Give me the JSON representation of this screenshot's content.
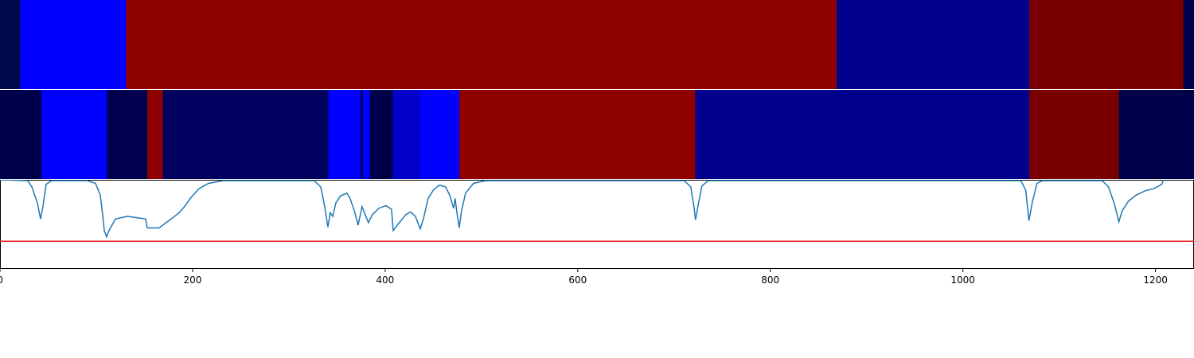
{
  "chart_data": [
    {
      "type": "segments",
      "xlim": [
        0,
        1240
      ],
      "bins": [
        0,
        21,
        131,
        869,
        1069,
        1229,
        1240
      ],
      "colors": [
        "#000a4a",
        "#0000ff",
        "#8f0000",
        "#00008a",
        "#7a0000",
        "#000050"
      ]
    },
    {
      "type": "segments",
      "xlim": [
        0,
        1240
      ],
      "bins": [
        0,
        43,
        111,
        153,
        169,
        341,
        374,
        377,
        384,
        408,
        436,
        477,
        722,
        1069,
        1162,
        1240
      ],
      "colors": [
        "#00004a",
        "#0000ff",
        "#00004f",
        "#8f0000",
        "#00005e",
        "#0000ff",
        "#00006f",
        "#0000ff",
        "#00004a",
        "#0000c8",
        "#0000ff",
        "#8f0000",
        "#00008a",
        "#7a0000",
        "#00004a"
      ]
    },
    {
      "type": "line",
      "xlim": [
        0,
        1240
      ],
      "ylim": [
        0,
        1
      ],
      "xticks": [
        0,
        200,
        400,
        600,
        800,
        1000,
        1200
      ],
      "color": "#1f77b4",
      "hline": 0.31,
      "hline_color": "#e41a1c",
      "x": [
        0,
        28.9,
        33.1,
        38.8,
        42.1,
        44.6,
        47.9,
        53.7,
        90.9,
        99.2,
        104.1,
        106.6,
        108.3,
        110.7,
        113.2,
        119.8,
        132.2,
        151.2,
        152.9,
        165.3,
        170.2,
        175.2,
        180.2,
        186,
        191.7,
        198.3,
        206.6,
        216.5,
        231.4,
        326.4,
        333.1,
        337.2,
        340.5,
        343,
        345.5,
        348.8,
        353.7,
        360.3,
        363.6,
        368.6,
        371.9,
        376,
        378.5,
        382.6,
        386.8,
        393.4,
        400.8,
        406.6,
        408.3,
        413.2,
        421.5,
        426.4,
        431.4,
        436.4,
        439.7,
        444.6,
        450.4,
        456.2,
        462.8,
        466.9,
        471.1,
        472.7,
        474.4,
        476.9,
        479.3,
        483.5,
        491.7,
        504.1,
        710.7,
        717.4,
        720.7,
        722.3,
        724.8,
        728.9,
        735.5,
        1060.3,
        1065.3,
        1068.6,
        1071.9,
        1076.9,
        1082.6,
        1144.6,
        1151.2,
        1157,
        1162,
        1165.3,
        1171.9,
        1180.2,
        1190.1,
        1198.3,
        1206.6,
        1208.3,
        1214.9
      ],
      "values": [
        1.0,
        0.99,
        0.92,
        0.74,
        0.56,
        0.7,
        0.95,
        0.99,
        0.99,
        0.96,
        0.83,
        0.61,
        0.43,
        0.36,
        0.43,
        0.56,
        0.59,
        0.56,
        0.46,
        0.46,
        0.5,
        0.54,
        0.58,
        0.63,
        0.7,
        0.8,
        0.9,
        0.96,
        0.99,
        0.99,
        0.92,
        0.7,
        0.47,
        0.63,
        0.59,
        0.74,
        0.82,
        0.85,
        0.79,
        0.63,
        0.49,
        0.7,
        0.63,
        0.52,
        0.61,
        0.68,
        0.71,
        0.67,
        0.43,
        0.5,
        0.61,
        0.64,
        0.59,
        0.45,
        0.56,
        0.79,
        0.89,
        0.94,
        0.92,
        0.83,
        0.68,
        0.79,
        0.64,
        0.46,
        0.65,
        0.85,
        0.96,
        0.99,
        0.99,
        0.92,
        0.7,
        0.55,
        0.7,
        0.93,
        0.99,
        0.99,
        0.88,
        0.54,
        0.74,
        0.96,
        0.99,
        0.99,
        0.92,
        0.74,
        0.53,
        0.65,
        0.76,
        0.83,
        0.88,
        0.9,
        0.95,
        1.0,
        1.05
      ]
    }
  ]
}
